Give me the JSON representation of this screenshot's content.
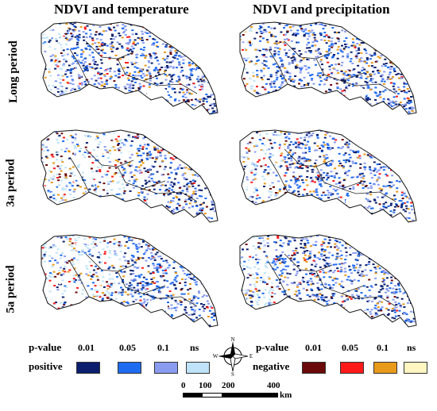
{
  "columns": [
    "NDVI and temperature",
    "NDVI and precipitation"
  ],
  "rows": [
    "Long period",
    "3a period",
    "5a period"
  ],
  "legend": {
    "pvalue_label": "p-value",
    "levels": [
      "0.01",
      "0.05",
      "0.1",
      "ns"
    ],
    "positive_label": "positive",
    "negative_label": "negative",
    "positive_colors": [
      "#0b1f6e",
      "#1f6bf0",
      "#8a9cf0",
      "#bfe3f8"
    ],
    "negative_colors": [
      "#6a0a0a",
      "#ff1a1a",
      "#e89a1a",
      "#fff6c2"
    ]
  },
  "compass": {
    "n": "N",
    "s": "S",
    "e": "E",
    "w": "W"
  },
  "scalebar": {
    "ticks": [
      "0",
      "100",
      "200",
      "400"
    ],
    "unit": "km"
  }
}
